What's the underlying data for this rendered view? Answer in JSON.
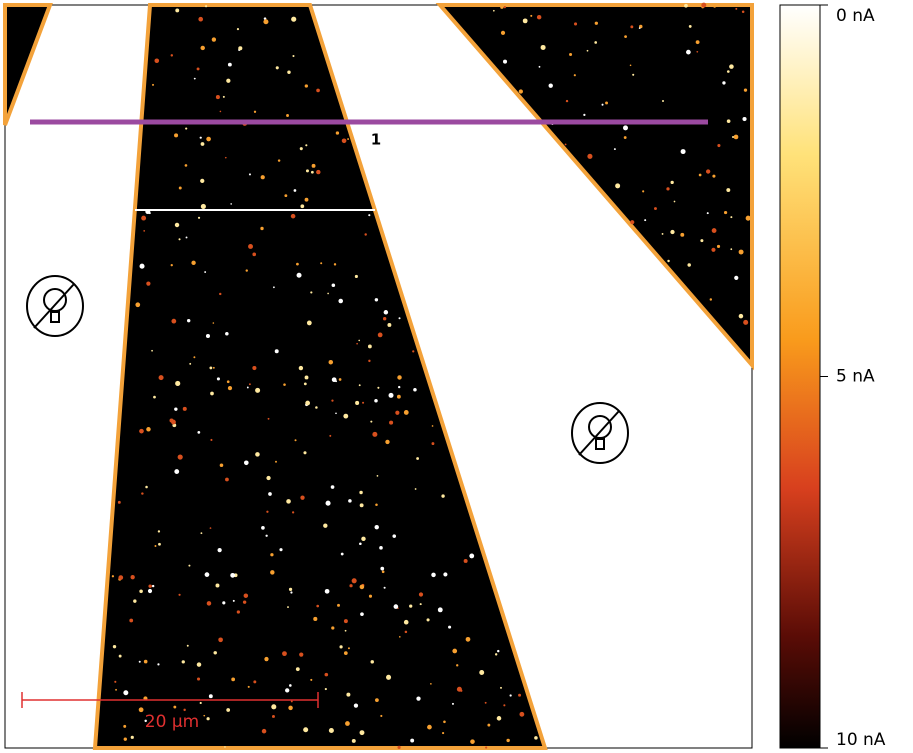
{
  "image": {
    "profile_label": "1",
    "scale_bar_label": "20 µm"
  },
  "colorbar": {
    "range": [
      0,
      10
    ],
    "ticks": [
      {
        "value": 0,
        "label": "0 nA"
      },
      {
        "value": 5,
        "label": "5 nA"
      },
      {
        "value": 10,
        "label": "10 nA"
      }
    ]
  }
}
